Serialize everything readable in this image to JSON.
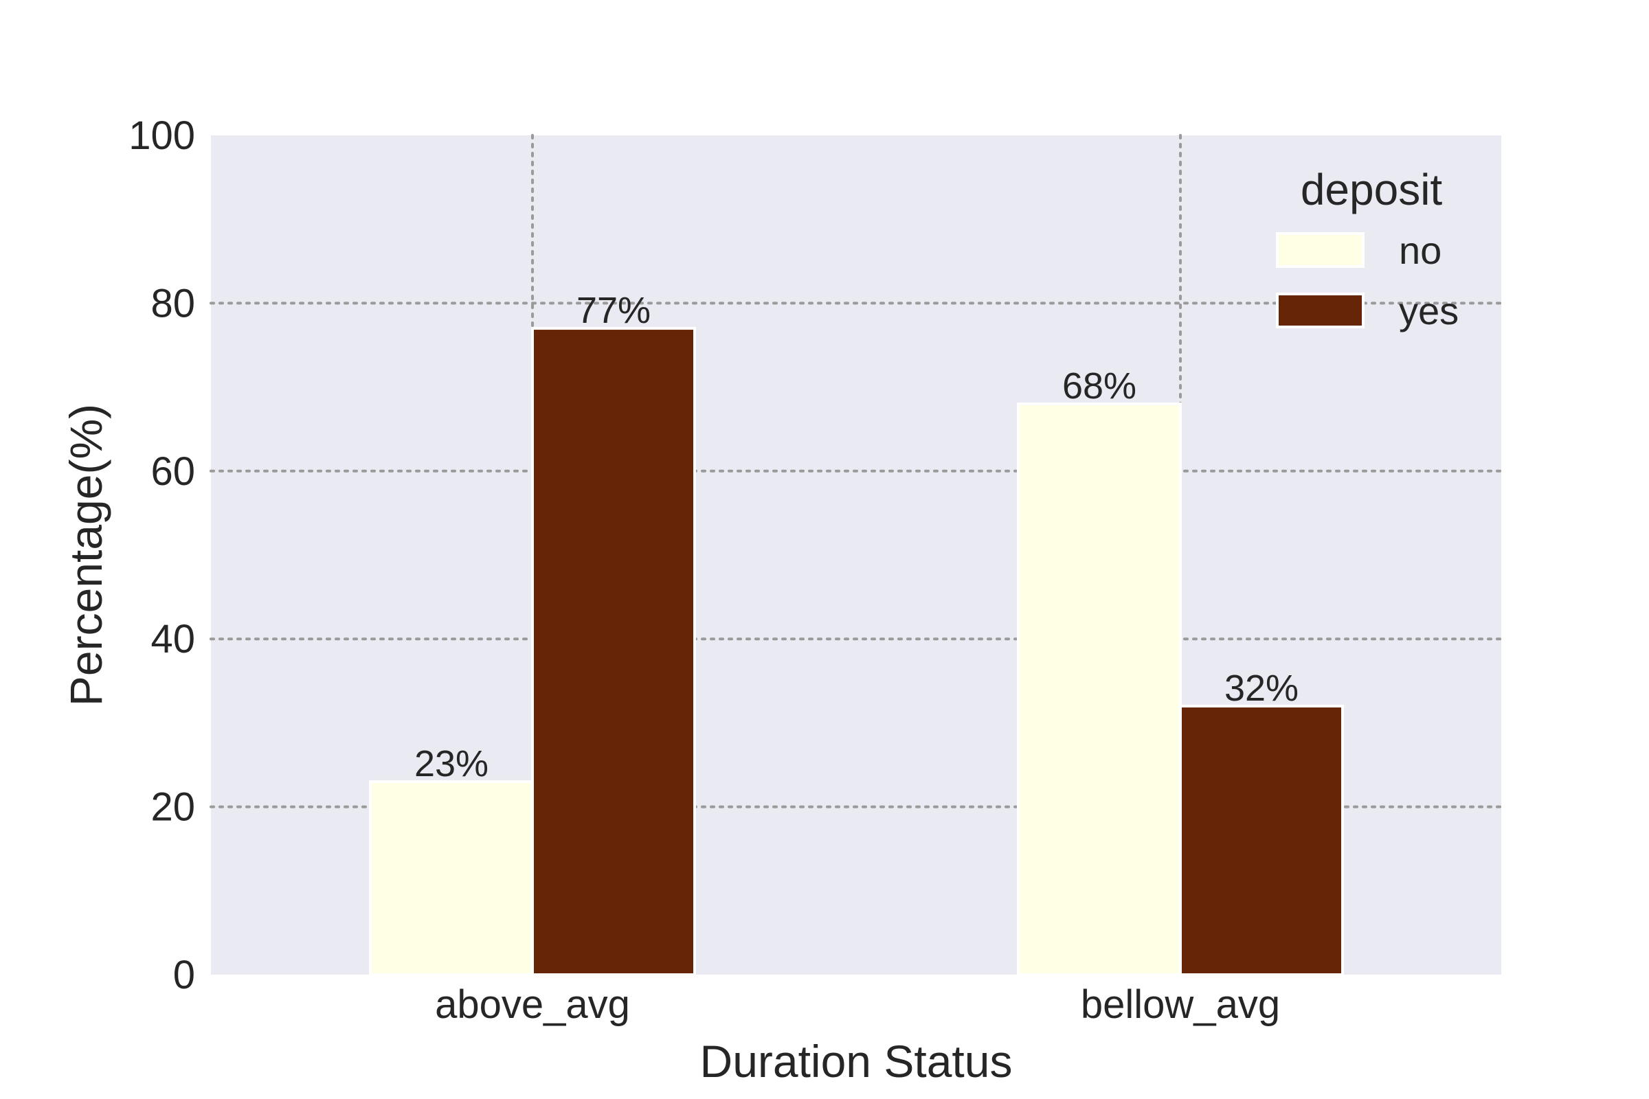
{
  "chart_data": {
    "type": "bar",
    "categories": [
      "above_avg",
      "bellow_avg"
    ],
    "series": [
      {
        "name": "no",
        "values": [
          23,
          68
        ],
        "labels": [
          "23%",
          "68%"
        ],
        "color": "#ffffe5"
      },
      {
        "name": "yes",
        "values": [
          77,
          32
        ],
        "labels": [
          "77%",
          "32%"
        ],
        "color": "#662506"
      }
    ],
    "title": "",
    "xlabel": "Duration Status",
    "ylabel": "Percentage(%)",
    "ylim": [
      0,
      100
    ],
    "yticks": [
      0,
      20,
      40,
      60,
      80,
      100
    ],
    "grid": true,
    "legend": {
      "title": "deposit",
      "position": "top-right"
    },
    "colors": {
      "plot_background": "#eaeaf2",
      "grid": "#9a9a9a",
      "text": "#262626"
    }
  }
}
